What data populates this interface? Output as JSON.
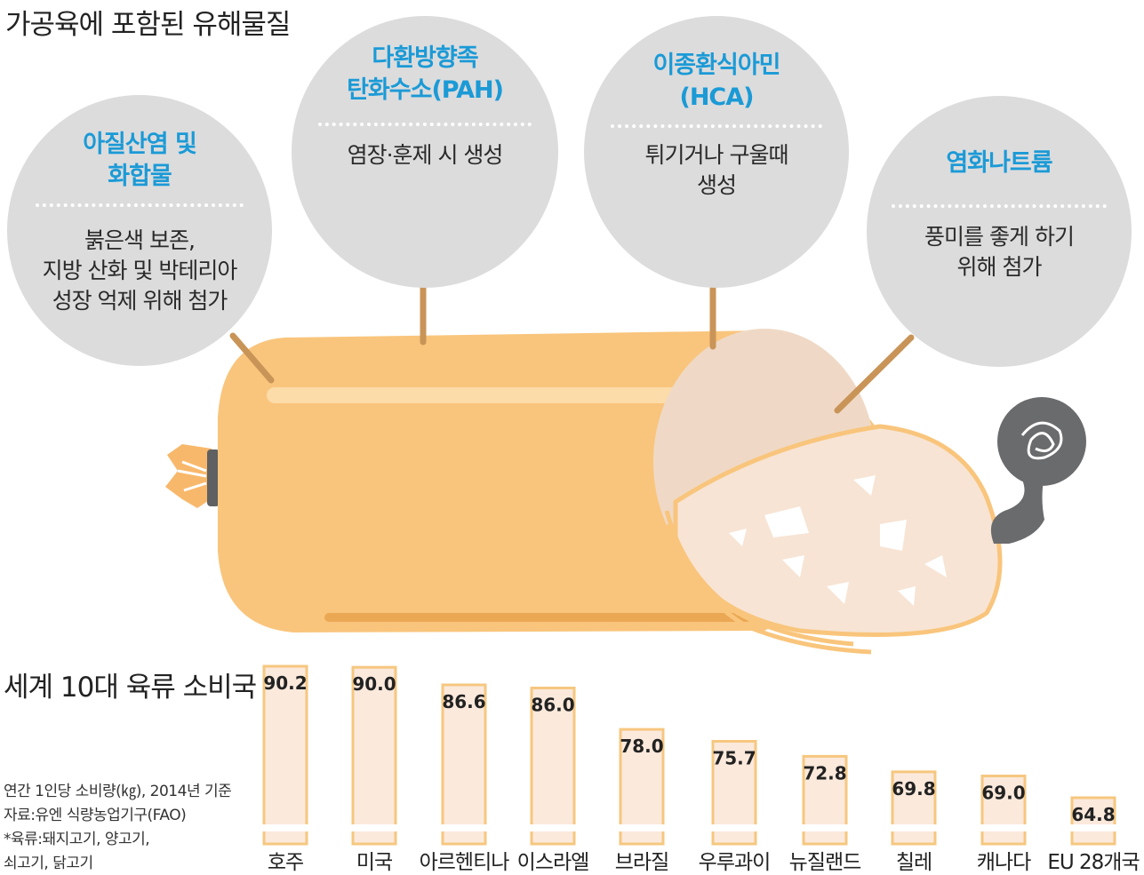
{
  "title": "가공육에 포함된 유해물질",
  "substances": [
    {
      "name": "아질산염 및\n화합물",
      "desc": "붉은색 보존,\n지방 산화 및 박테리아\n성장 억제 위해 첨가"
    },
    {
      "name": "다환방향족\n탄화수소(PAH)",
      "desc": "염장·훈제 시 생성"
    },
    {
      "name": "이종환식아민\n(HCA)",
      "desc": "튀기거나 구울때\n생성"
    },
    {
      "name": "염화나트륨",
      "desc": "풍미를 좋게 하기\n위해 첨가"
    }
  ],
  "colors": {
    "accent": "#1b9ad6",
    "bubble": "#dcdcdd",
    "sausage": "#f9c57c",
    "bar_fill": "#fbe9dc",
    "bar_stroke": "#f6c77f"
  },
  "notes": {
    "unit": "연간 1인당 소비량(㎏), 2014년 기준",
    "source": "자료:유엔 식량농업기구(FAO)",
    "footnote_1": "*육류:돼지고기, 양고기,",
    "footnote_2": "쇠고기, 닭고기"
  },
  "chart_data": {
    "type": "bar",
    "title": "세계 10대 육류 소비국",
    "categories": [
      "호주",
      "미국",
      "아르헨티나",
      "이스라엘",
      "브라질",
      "우루과이",
      "뉴질랜드",
      "칠레",
      "캐나다",
      "EU 28개국"
    ],
    "values": [
      90.2,
      90.0,
      86.6,
      86.0,
      78.0,
      75.7,
      72.8,
      69.8,
      69.0,
      64.8
    ],
    "value_labels": [
      "90.2",
      "90.0",
      "86.6",
      "86.0",
      "78.0",
      "75.7",
      "72.8",
      "69.8",
      "69.0",
      "64.8"
    ],
    "xlabel": "",
    "ylabel": "",
    "grid": false,
    "legend": "none"
  }
}
